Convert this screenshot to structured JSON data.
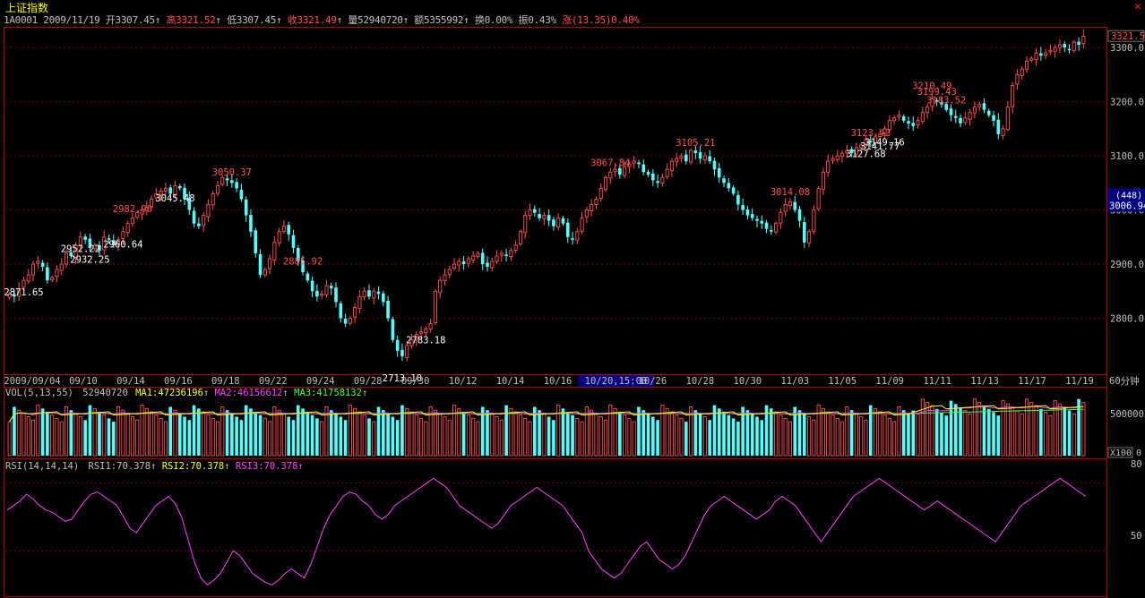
{
  "header": {
    "title": "上证指数",
    "code": "1A0001",
    "date": "2009/11/19",
    "open": "开3307.45",
    "high": "高3321.52",
    "low": "低3307.45",
    "close": "收3321.49",
    "volume": "量52940720",
    "amount": "额5355992",
    "turnover": "换0.00%",
    "amplitude": "振0.43%",
    "change": "涨(13.35)0.40%",
    "colors": {
      "up": "#ff5050",
      "down": "#54ffff",
      "text": "#c0c0c0",
      "frame": "#b00000"
    }
  },
  "price_axis": {
    "labels": [
      "3300.0",
      "3200.0",
      "3100.0",
      "3000.0",
      "2900.0",
      "2800.0"
    ],
    "current_price": "3321.5",
    "cursor_count": "(448)",
    "cursor_price": "3006.94"
  },
  "x_axis": {
    "labels": [
      "2009/09/04",
      "09/10",
      "09/14",
      "09/16",
      "09/18",
      "09/22",
      "09/24",
      "09/28",
      "09/30",
      "10/12",
      "10/14",
      "10/16",
      "10/20,15:00",
      "10/26",
      "10/28",
      "10/30",
      "11/03",
      "11/05",
      "11/09",
      "11/11",
      "11/13",
      "11/17",
      "11/19"
    ],
    "period": "60分钟"
  },
  "volume_panel": {
    "label": "VOL(5,13,55)",
    "value": "52940720",
    "ma1": "MA1:47236196",
    "ma2": "MA2:46156612",
    "ma3": "MA3:41758132",
    "axis_label": "500000",
    "unit": "X100",
    "zero": "0"
  },
  "rsi_panel": {
    "label": "RSI(14,14,14)",
    "rsi1": "RSI1:70.378",
    "rsi2": "RSI2:70.378",
    "rsi3": "RSI3:70.378",
    "axis_top": "80",
    "axis_mid": "50"
  },
  "chart_data": [
    {
      "type": "candlestick",
      "ylim": [
        2700,
        3330
      ],
      "annotations": [
        {
          "text": "3050.37",
          "value": 3050.37,
          "kind": "high"
        },
        {
          "text": "3067.84",
          "value": 3067.84,
          "kind": "high"
        },
        {
          "text": "2960.64",
          "value": 2960.64,
          "kind": "low"
        },
        {
          "text": "2982.90",
          "value": 2982.9,
          "kind": "high"
        },
        {
          "text": "2871.65",
          "value": 2871.65,
          "kind": "low"
        },
        {
          "text": "2885.92",
          "value": 2885.92,
          "kind": "high"
        },
        {
          "text": "2783.18",
          "value": 2783.18,
          "kind": "low"
        },
        {
          "text": "2713.10",
          "value": 2713.1,
          "kind": "low"
        },
        {
          "text": "3014.08",
          "value": 3014.08,
          "kind": "high"
        },
        {
          "text": "2932.25",
          "value": 2932.25,
          "kind": "low"
        },
        {
          "text": "3105.21",
          "value": 3105.21,
          "kind": "high"
        },
        {
          "text": "3045.48",
          "value": 3045.48,
          "kind": "low"
        },
        {
          "text": "3123.42",
          "value": 3123.42,
          "kind": "high"
        },
        {
          "text": "2952.22",
          "value": 2952.22,
          "kind": "low"
        },
        {
          "text": "3183.52",
          "value": 3183.52,
          "kind": "high"
        },
        {
          "text": "3141.77",
          "value": 3141.77,
          "kind": "low"
        },
        {
          "text": "3210.49",
          "value": 3210.49,
          "kind": "high"
        },
        {
          "text": "3149.16",
          "value": 3149.16,
          "kind": "low"
        },
        {
          "text": "3199.43",
          "value": 3199.43,
          "kind": "high"
        },
        {
          "text": "3127.68",
          "value": 3127.68,
          "kind": "low"
        }
      ],
      "closes": [
        2845,
        2840,
        2855,
        2870,
        2880,
        2900,
        2905,
        2895,
        2870,
        2875,
        2890,
        2900,
        2920,
        2915,
        2935,
        2950,
        2945,
        2930,
        2935,
        2925,
        2950,
        2945,
        2935,
        2945,
        2960,
        2975,
        2985,
        2995,
        3000,
        3005,
        3020,
        3030,
        3035,
        3040,
        3030,
        3045,
        3040,
        3020,
        3000,
        2975,
        2970,
        2990,
        3010,
        3030,
        3045,
        3060,
        3055,
        3050,
        3040,
        3020,
        2990,
        2960,
        2920,
        2880,
        2890,
        2910,
        2940,
        2960,
        2970,
        2955,
        2930,
        2905,
        2885,
        2870,
        2850,
        2840,
        2845,
        2860,
        2855,
        2830,
        2800,
        2790,
        2800,
        2820,
        2840,
        2850,
        2840,
        2850,
        2845,
        2830,
        2800,
        2760,
        2740,
        2730,
        2750,
        2760,
        2770,
        2775,
        2780,
        2790,
        2850,
        2870,
        2880,
        2890,
        2900,
        2905,
        2900,
        2910,
        2915,
        2920,
        2900,
        2895,
        2905,
        2915,
        2920,
        2915,
        2925,
        2935,
        2960,
        2990,
        3000,
        2995,
        2985,
        2990,
        2980,
        2970,
        2985,
        2975,
        2950,
        2945,
        2960,
        2985,
        3000,
        3010,
        3020,
        3040,
        3060,
        3070,
        3075,
        3065,
        3080,
        3085,
        3090,
        3085,
        3070,
        3065,
        3055,
        3050,
        3060,
        3075,
        3090,
        3095,
        3100,
        3090,
        3110,
        3105,
        3095,
        3100,
        3090,
        3075,
        3060,
        3050,
        3040,
        3030,
        3010,
        3000,
        2990,
        2985,
        2980,
        2975,
        2965,
        2960,
        2975,
        2995,
        3010,
        3015,
        3000,
        2980,
        2940,
        2960,
        3000,
        3040,
        3070,
        3090,
        3095,
        3100,
        3105,
        3110,
        3105,
        3115,
        3120,
        3130,
        3125,
        3135,
        3140,
        3150,
        3165,
        3170,
        3175,
        3165,
        3160,
        3155,
        3165,
        3180,
        3190,
        3205,
        3200,
        3195,
        3185,
        3175,
        3170,
        3160,
        3170,
        3180,
        3190,
        3195,
        3185,
        3175,
        3165,
        3140,
        3150,
        3190,
        3230,
        3250,
        3260,
        3275,
        3280,
        3290,
        3285,
        3290,
        3295,
        3300,
        3305,
        3300,
        3295,
        3310,
        3305,
        3321
      ]
    },
    {
      "type": "bar",
      "name": "VOL(5,13,55)",
      "ylim": [
        0,
        600000
      ]
    },
    {
      "type": "line",
      "name": "RSI(14,14,14)",
      "ylim": [
        30,
        90
      ],
      "values": [
        68,
        70,
        72,
        75,
        73,
        70,
        68,
        67,
        65,
        63,
        64,
        68,
        72,
        75,
        76,
        74,
        72,
        70,
        65,
        60,
        58,
        62,
        66,
        70,
        72,
        74,
        71,
        65,
        55,
        45,
        38,
        35,
        37,
        40,
        45,
        50,
        48,
        44,
        40,
        38,
        36,
        35,
        37,
        40,
        42,
        40,
        38,
        44,
        52,
        60,
        66,
        70,
        74,
        76,
        75,
        72,
        70,
        66,
        64,
        66,
        70,
        72,
        74,
        76,
        78,
        80,
        82,
        80,
        78,
        74,
        70,
        68,
        66,
        64,
        62,
        60,
        62,
        66,
        70,
        72,
        74,
        76,
        78,
        76,
        74,
        72,
        70,
        66,
        62,
        58,
        50,
        46,
        42,
        40,
        38,
        40,
        44,
        48,
        52,
        54,
        50,
        46,
        44,
        42,
        44,
        48,
        54,
        60,
        66,
        70,
        72,
        74,
        72,
        70,
        68,
        66,
        64,
        66,
        68,
        72,
        74,
        72,
        70,
        66,
        62,
        58,
        54,
        58,
        62,
        66,
        70,
        74,
        76,
        78,
        80,
        82,
        80,
        78,
        76,
        74,
        72,
        70,
        68,
        70,
        72,
        70,
        68,
        66,
        64,
        62,
        60,
        58,
        56,
        54,
        58,
        62,
        66,
        70,
        72,
        74,
        76,
        78,
        80,
        82,
        80,
        78,
        76,
        74
      ]
    }
  ]
}
